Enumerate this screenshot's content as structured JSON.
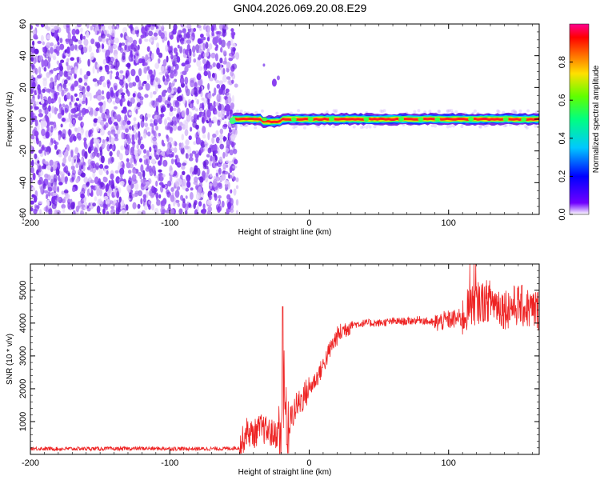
{
  "title": "GN04.2026.069.20.08.E29",
  "colors": {
    "snr_line": "#ee2222",
    "scatter_noise": "#7a2ee0",
    "frame": "#000000"
  },
  "chart_data": [
    {
      "type": "heatmap",
      "xlabel": "Height of straight line (km)",
      "ylabel": "Frequency (Hz)",
      "xlim": [
        -200,
        165
      ],
      "ylim": [
        -60,
        60
      ],
      "xticks": [
        -200,
        -100,
        0,
        100
      ],
      "yticks": [
        -60,
        -40,
        -20,
        0,
        20,
        40,
        60
      ],
      "colorbar": {
        "label": "Normalized spectral amplitude",
        "range": [
          0,
          1
        ],
        "ticks": [
          "0.0",
          "0.2",
          "0.4",
          "0.6",
          "0.8"
        ],
        "colormap": "rainbow"
      },
      "features": {
        "noise_region_x": [
          -200,
          -55
        ],
        "signal_band_frequency": 0,
        "signal_band_x": [
          -55,
          165
        ],
        "isolated_spot": {
          "x": -25,
          "y": 23
        }
      }
    },
    {
      "type": "line",
      "xlabel": "Height of straight line (km)",
      "ylabel": "SNR (10 * v/v)",
      "xlim": [
        -200,
        165
      ],
      "ylim": [
        0,
        5800
      ],
      "xticks": [
        -200,
        -100,
        0,
        100
      ],
      "yticks": [
        1000,
        2000,
        3000,
        4000,
        5000
      ],
      "series": [
        {
          "x": [
            -200,
            -180,
            -160,
            -140,
            -120,
            -100,
            -80,
            -60,
            -50,
            -45,
            -40,
            -35,
            -30,
            -25,
            -20,
            -18,
            -15,
            -10,
            -5,
            0,
            5,
            10,
            15,
            20,
            25,
            30,
            40,
            50,
            60,
            70,
            80,
            90,
            100,
            110,
            115,
            120,
            130,
            140,
            150,
            160,
            165
          ],
          "values": [
            180,
            170,
            175,
            170,
            180,
            175,
            170,
            175,
            200,
            700,
            600,
            800,
            700,
            600,
            700,
            1700,
            900,
            1400,
            1700,
            2000,
            2300,
            2700,
            3200,
            3600,
            3800,
            3950,
            4000,
            4000,
            4050,
            4050,
            4100,
            4000,
            4100,
            4150,
            4500,
            4600,
            4700,
            4450,
            4550,
            4400,
            4400
          ]
        }
      ]
    }
  ]
}
